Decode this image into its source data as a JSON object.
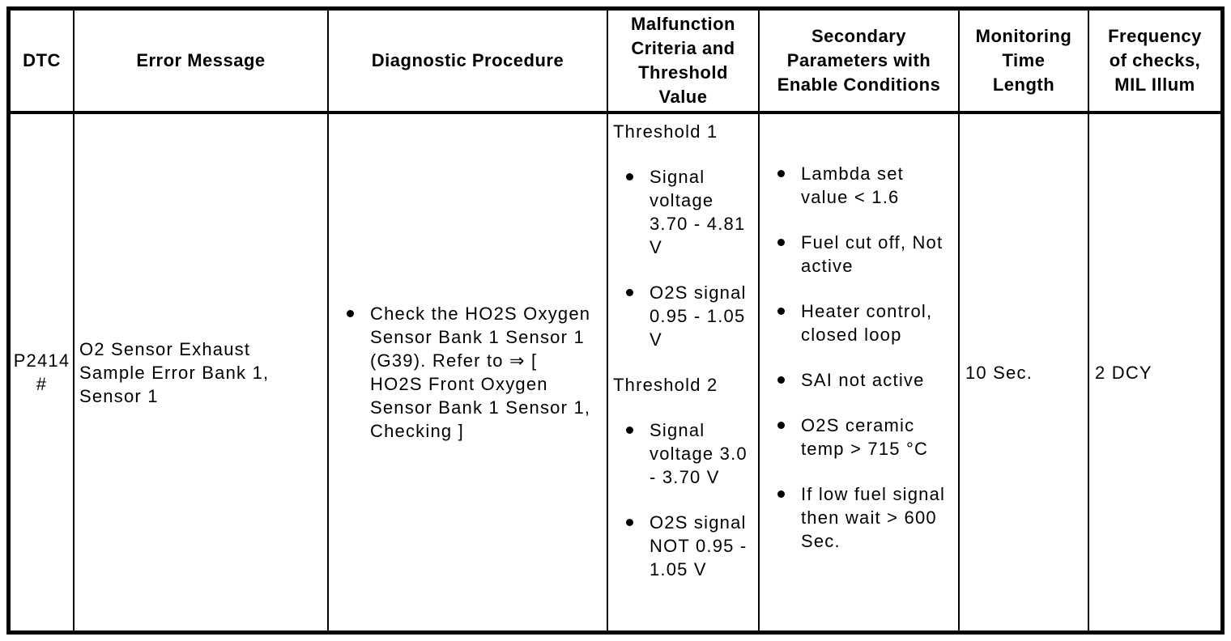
{
  "colors": {
    "text": "#000000",
    "border": "#000000",
    "background": "#ffffff"
  },
  "table": {
    "header": {
      "columns": [
        {
          "lines": [
            "DTC"
          ]
        },
        {
          "lines": [
            "Error Message"
          ]
        },
        {
          "lines": [
            "Diagnostic Procedure"
          ]
        },
        {
          "lines": [
            "Malfunction",
            "Criteria and",
            "Threshold",
            "Value"
          ]
        },
        {
          "lines": [
            "Secondary",
            "Parameters with",
            "Enable Conditions"
          ]
        },
        {
          "lines": [
            "Monitoring",
            "Time",
            "Length"
          ]
        },
        {
          "lines": [
            "Frequency",
            "of checks,",
            "MIL Illum"
          ]
        }
      ]
    },
    "row": {
      "dtc_code": "P2414",
      "dtc_flag": "#",
      "error_message": "O2 Sensor Exhaust Sample Error Bank 1, Sensor 1",
      "diagnostic_procedure_items": [
        "Check the HO2S Oxygen Sensor Bank 1 Sensor 1 (G39). Refer to ⇒ [ HO2S Front Oxygen Sensor Bank 1 Sensor 1, Checking ]"
      ],
      "malfunction_criteria": {
        "threshold_1": {
          "heading": "Threshold 1",
          "items": [
            "Signal voltage 3.70 - 4.81 V",
            "O2S signal 0.95 - 1.05 V"
          ]
        },
        "threshold_2": {
          "heading": "Threshold 2",
          "items": [
            "Signal voltage 3.0 - 3.70 V",
            "O2S signal NOT 0.95 - 1.05 V"
          ]
        }
      },
      "secondary_parameters": [
        "Lambda set value < 1.6",
        "Fuel cut off, Not active",
        "Heater control, closed loop",
        "SAI not active",
        "O2S ceramic temp > 715 °C",
        "If low fuel signal then wait > 600 Sec."
      ],
      "monitoring_time_length": "10 Sec.",
      "frequency_of_checks_mil_illum": "2 DCY"
    }
  }
}
